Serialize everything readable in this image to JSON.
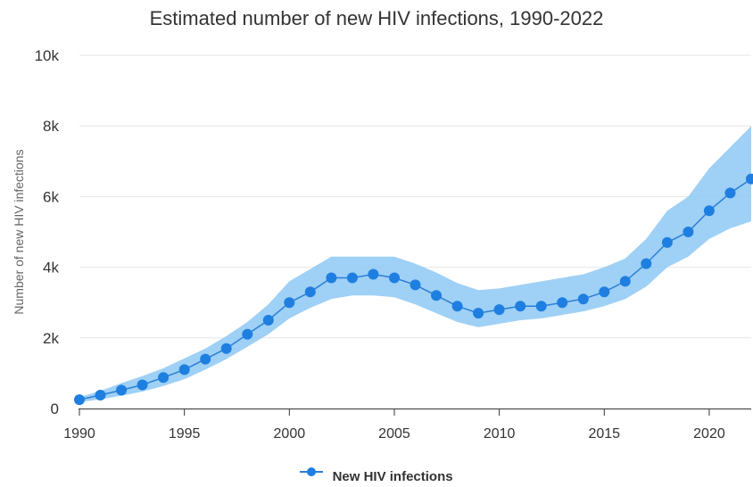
{
  "chart_data": {
    "type": "line",
    "title": "Estimated number of new HIV infections, 1990-2022",
    "xlabel": "",
    "ylabel": "Number of new HIV infections",
    "x": [
      1990,
      1991,
      1992,
      1993,
      1994,
      1995,
      1996,
      1997,
      1998,
      1999,
      2000,
      2001,
      2002,
      2003,
      2004,
      2005,
      2006,
      2007,
      2008,
      2009,
      2010,
      2011,
      2012,
      2013,
      2014,
      2015,
      2016,
      2017,
      2018,
      2019,
      2020,
      2021,
      2022
    ],
    "xticks": [
      "1990",
      "1995",
      "2000",
      "2005",
      "2010",
      "2015",
      "2020"
    ],
    "yticks": [
      "0",
      "2k",
      "4k",
      "6k",
      "8k",
      "10k"
    ],
    "ylim": [
      0,
      10000
    ],
    "xlim": [
      1990,
      2022
    ],
    "series": [
      {
        "name": "New HIV infections",
        "color": "#1f7fe0",
        "values": [
          250,
          380,
          520,
          670,
          880,
          1100,
          1400,
          1700,
          2100,
          2500,
          3000,
          3300,
          3700,
          3700,
          3800,
          3700,
          3500,
          3200,
          2900,
          2700,
          2800,
          2900,
          2900,
          3000,
          3100,
          3300,
          3600,
          4100,
          4700,
          5000,
          5600,
          6100,
          6500
        ],
        "lower": [
          180,
          260,
          360,
          480,
          640,
          830,
          1100,
          1400,
          1750,
          2100,
          2550,
          2850,
          3100,
          3200,
          3200,
          3150,
          2950,
          2700,
          2450,
          2300,
          2400,
          2500,
          2550,
          2650,
          2750,
          2900,
          3100,
          3450,
          4000,
          4300,
          4800,
          5100,
          5300
        ],
        "upper": [
          320,
          500,
          720,
          920,
          1140,
          1420,
          1700,
          2050,
          2450,
          2950,
          3600,
          3950,
          4300,
          4300,
          4300,
          4300,
          4100,
          3850,
          3550,
          3350,
          3400,
          3500,
          3600,
          3700,
          3800,
          4000,
          4250,
          4800,
          5600,
          6000,
          6800,
          7400,
          8000
        ]
      }
    ],
    "legend": "bottom-center",
    "grid": true
  }
}
